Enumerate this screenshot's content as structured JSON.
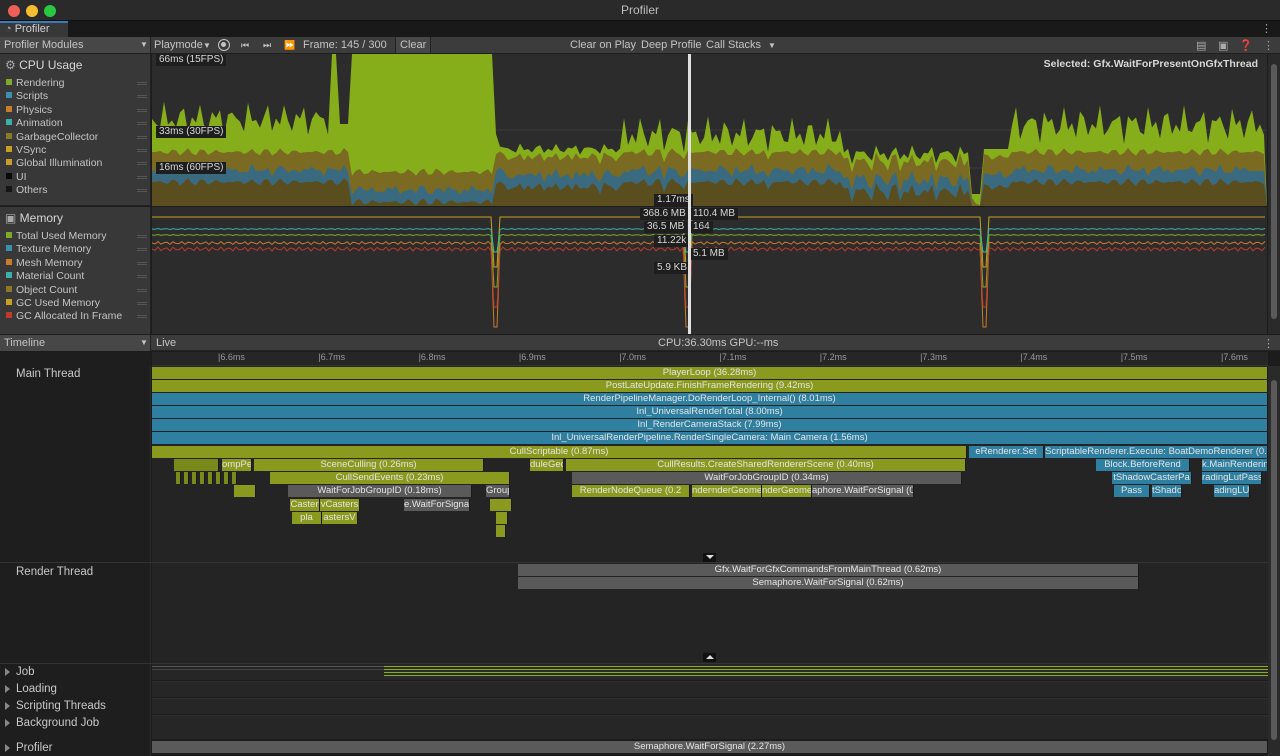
{
  "window": {
    "title": "Profiler",
    "tab": "Profiler"
  },
  "toolbar": {
    "modules": "Profiler Modules",
    "mode": "Playmode",
    "frame": "Frame: 145 / 300",
    "clear": "Clear",
    "clear_on_play": "Clear on Play",
    "deep_profile": "Deep Profile",
    "call_stacks": "Call Stacks"
  },
  "cpu": {
    "title": "CPU Usage",
    "legend": [
      "Rendering",
      "Scripts",
      "Physics",
      "Animation",
      "GarbageCollector",
      "VSync",
      "Global Illumination",
      "UI",
      "Others"
    ],
    "legend_colors": [
      "#7fa92a",
      "#3d8fb0",
      "#c87c2c",
      "#3ab0a8",
      "#8a7a28",
      "#c7a020",
      "#c69c2a",
      "#0a0a0a",
      "#151515"
    ],
    "markers": [
      "66ms (15FPS)",
      "33ms (30FPS)",
      "16ms (60FPS)"
    ],
    "selected": "Selected: Gfx.WaitForPresentOnGfxThread",
    "cursor_value": "1.17ms"
  },
  "memory": {
    "title": "Memory",
    "legend": [
      "Total Used Memory",
      "Texture Memory",
      "Mesh Memory",
      "Material Count",
      "Object Count",
      "GC Used Memory",
      "GC Allocated In Frame"
    ],
    "legend_colors": [
      "#7fa92a",
      "#3d8fb0",
      "#c87c2c",
      "#3ab0a8",
      "#8a7a28",
      "#c7a020",
      "#c0392b"
    ],
    "values": [
      "368.6 MB",
      "110.4 MB",
      "36.5 MB",
      "164",
      "11.22k",
      "5.1 MB",
      "5.9 KB"
    ]
  },
  "timeline": {
    "view": "Timeline",
    "live": "Live",
    "stats": "CPU:36.30ms   GPU:--ms",
    "ticks": [
      "6.6ms",
      "6.7ms",
      "6.8ms",
      "6.9ms",
      "7.0ms",
      "7.1ms",
      "7.2ms",
      "7.3ms",
      "7.4ms",
      "7.5ms",
      "7.6ms"
    ],
    "main_thread": "Main Thread",
    "render_thread": "Render Thread",
    "rows": [
      "PlayerLoop (36.28ms)",
      "PostLateUpdate.FinishFrameRendering (9.42ms)",
      "RenderPipelineManager.DoRenderLoop_Internal() (8.01ms)",
      "Inl_UniversalRenderTotal (8.00ms)",
      "Inl_RenderCameraStack (7.99ms)",
      "Inl_UniversalRenderPipeline.RenderSingleCamera: Main Camera (1.56ms)"
    ],
    "row6": [
      "CullScriptable (0.87ms)",
      "eRenderer.Set",
      "ScriptableRenderer.Execute: BoatDemoRenderer (0.60ms"
    ],
    "row7": [
      "ompPer",
      "SceneCulling (0.26ms)",
      "duleGeo",
      "CullResults.CreateSharedRendererScene (0.40ms)",
      "Block.BeforeRend",
      "k.MainRenderin"
    ],
    "row8": [
      "CullSendEvents (0.23ms)",
      "WaitForJobGroupID (0.34ms)",
      "tShadowCasterPa",
      "radingLutPass"
    ],
    "row9": [
      "WaitForJobGroupID (0.18ms)",
      "Group",
      "RenderNodeQueue (0.2",
      "nderGeome",
      "nderGeome",
      "nderGeome",
      "aphore.WaitForSignal (0.1",
      "Pass",
      "tShado",
      "adingLU"
    ],
    "row10": [
      "Caster",
      "vCasters",
      "e.WaitForSigna"
    ],
    "row11": [
      "pla",
      "astersV"
    ],
    "render_rows": [
      "Gfx.WaitForGfxCommandsFromMainThread (0.62ms)",
      "Semaphore.WaitForSignal (0.62ms)"
    ],
    "groups": [
      "Job",
      "Loading",
      "Scripting Threads",
      "Background Job",
      "Profiler"
    ],
    "profiler_bar": "Semaphore.WaitForSignal (2.27ms)"
  }
}
